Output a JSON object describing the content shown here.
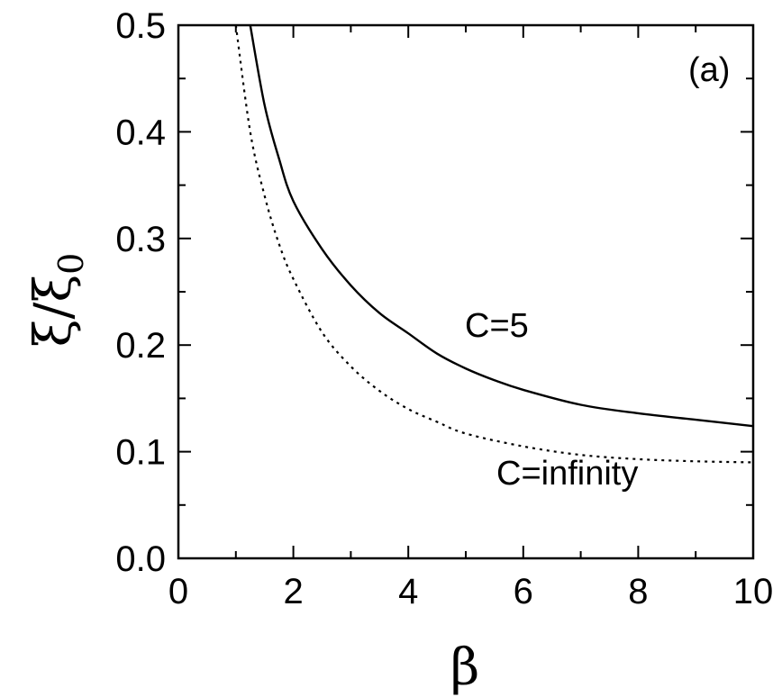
{
  "chart_data": {
    "type": "line",
    "panel_label": "(a)",
    "xlabel": "β",
    "ylabel": "ξ/ξ",
    "ylabel_subscript": "0",
    "xlim": [
      0,
      10
    ],
    "ylim": [
      0.0,
      0.5
    ],
    "x_ticks": [
      0,
      2,
      4,
      6,
      8,
      10
    ],
    "x_tick_labels": [
      "0",
      "2",
      "4",
      "6",
      "8",
      "10"
    ],
    "y_ticks": [
      0.0,
      0.1,
      0.2,
      0.3,
      0.4,
      0.5
    ],
    "y_tick_labels": [
      "0.0",
      "0.1",
      "0.2",
      "0.3",
      "0.4",
      "0.5"
    ],
    "grid": false,
    "series": [
      {
        "name": "C=5",
        "line_style": "solid",
        "color": "#000000",
        "x": [
          1.25,
          1.5,
          1.75,
          2.0,
          2.5,
          3.0,
          3.5,
          4.0,
          4.5,
          5.0,
          5.5,
          6.0,
          7.0,
          8.0,
          9.0,
          10.0
        ],
        "y": [
          0.5,
          0.425,
          0.375,
          0.335,
          0.29,
          0.256,
          0.23,
          0.211,
          0.192,
          0.178,
          0.167,
          0.158,
          0.144,
          0.136,
          0.13,
          0.124
        ]
      },
      {
        "name": "C=infinity",
        "line_style": "dotted",
        "color": "#000000",
        "x": [
          1.0,
          1.25,
          1.5,
          1.75,
          2.0,
          2.5,
          3.0,
          3.5,
          4.0,
          4.5,
          5.0,
          6.0,
          7.0,
          8.0,
          9.0,
          10.0
        ],
        "y": [
          0.5,
          0.4,
          0.34,
          0.295,
          0.262,
          0.212,
          0.18,
          0.157,
          0.14,
          0.128,
          0.117,
          0.105,
          0.097,
          0.093,
          0.091,
          0.09
        ]
      }
    ]
  }
}
